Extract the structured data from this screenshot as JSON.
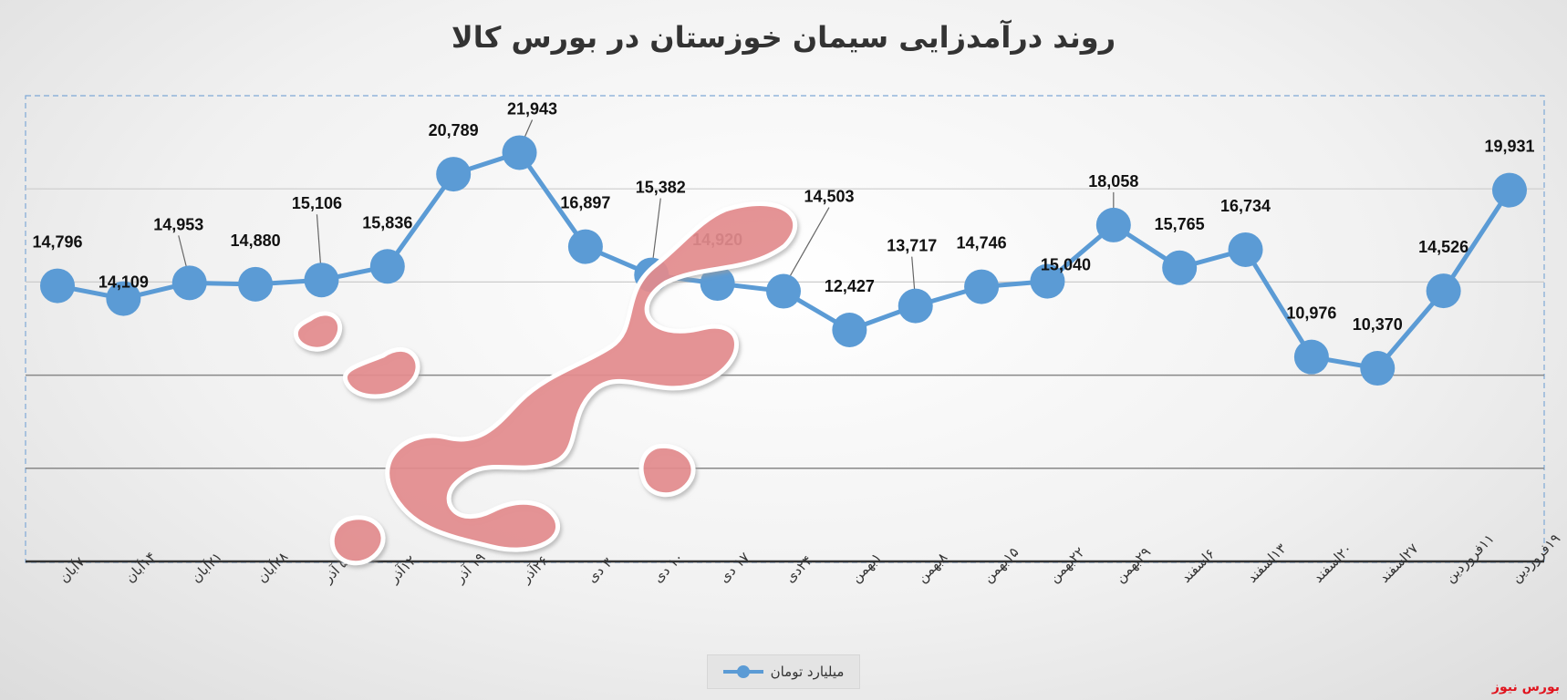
{
  "chart_data": {
    "type": "line",
    "title": "روند درآمدزایی سیمان خوزستان در بورس کالا",
    "categories": [
      "۷آبان",
      "۱۴آبان",
      "۲۱آبان",
      "۲۸آبان",
      "۵ آذر",
      "۱۲آذر",
      "۱۹ آذر",
      "۲۶آذر",
      "۳ دی",
      "۱۰ دی",
      "۱۷ دی",
      "۲۴دی",
      "۱بهمن",
      "۸بهمن",
      "۱۵بهمن",
      "۲۲بهمن",
      "۲۹بهمن",
      "۶اسفند",
      "۱۳اسفند",
      "۲۰اسفند",
      "۲۷اسفند",
      "۱۱فروردین",
      "۱۹فروردین"
    ],
    "series": [
      {
        "name": "میلیارد تومان",
        "values": [
          14796,
          14109,
          14953,
          14880,
          15106,
          15836,
          20789,
          21943,
          16897,
          15382,
          14920,
          14503,
          12427,
          13717,
          14746,
          15040,
          18058,
          15765,
          16734,
          10976,
          10370,
          14526,
          19931
        ],
        "value_labels": [
          "14,796",
          "14,109",
          "14,953",
          "14,880",
          "15,106",
          "15,836",
          "20,789",
          "21,943",
          "16,897",
          "15,382",
          "14,920",
          "14,503",
          "12,427",
          "13,717",
          "14,746",
          "15,040",
          "18,058",
          "15,765",
          "16,734",
          "10,976",
          "10,370",
          "14,526",
          "19,931"
        ]
      }
    ],
    "ylim": [
      0,
      25000
    ],
    "grid": true,
    "legend_position": "bottom",
    "line_color": "#5b9bd5"
  },
  "watermark_text": "بورس نیوز",
  "source_tag": "بورس نیوز"
}
